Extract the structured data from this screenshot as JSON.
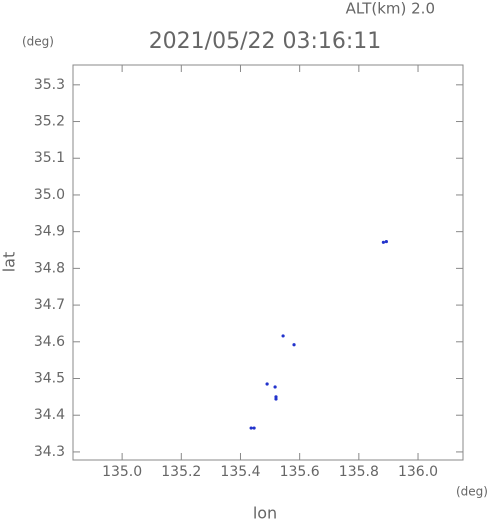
{
  "chart_data": {
    "type": "scatter",
    "title": "2021/05/22 03:16:11",
    "subtitle": "ALT(km) 2.0",
    "xlabel": "lon",
    "ylabel": "lat",
    "xunit": "(deg)",
    "yunit": "(deg)",
    "x": [
      135.883,
      135.893,
      135.544,
      135.581,
      135.49,
      135.517,
      135.52,
      135.52,
      135.436,
      135.446
    ],
    "series": [
      {
        "name": "points",
        "color": "#2233cc",
        "values": [
          34.871,
          34.873,
          34.616,
          34.592,
          34.485,
          34.477,
          34.45,
          34.444,
          34.365,
          34.365
        ]
      }
    ],
    "xlim": [
      134.834,
      136.152
    ],
    "ylim": [
      34.278,
      35.354
    ],
    "xticks": [
      {
        "value": 135,
        "label": "135.0"
      },
      135.2,
      135.4,
      135.6,
      135.8,
      {
        "value": 136,
        "label": "136.0"
      }
    ],
    "yticks": [
      34.3,
      34.4,
      34.5,
      34.6,
      34.7,
      34.8,
      34.9,
      {
        "value": 35,
        "label": "35.0"
      },
      35.1,
      35.2,
      35.3
    ]
  }
}
